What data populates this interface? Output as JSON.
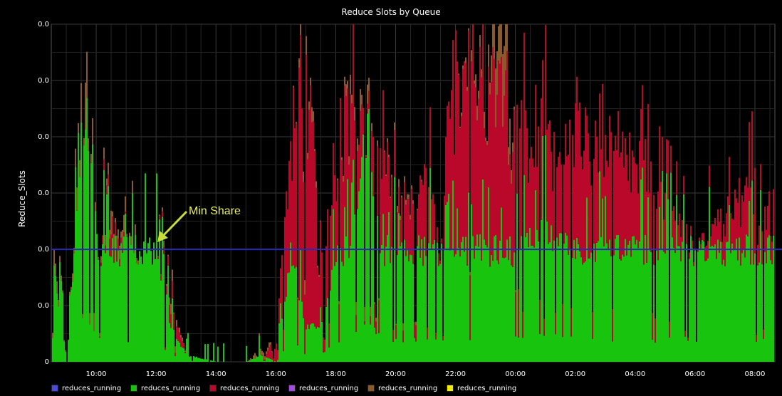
{
  "chart_data": {
    "type": "area",
    "title": "Reduce Slots by Queue",
    "ylabel": "Reduce_Slots",
    "xlabel": "",
    "y_tick_labels": [
      "0",
      "0.0",
      "0.0",
      "0.0",
      "0.0",
      "0.0",
      "0.0"
    ],
    "x_tick_labels": [
      "10:00",
      "12:00",
      "14:00",
      "16:00",
      "18:00",
      "20:00",
      "22:00",
      "00:00",
      "02:00",
      "04:00",
      "06:00",
      "08:00"
    ],
    "grid": true,
    "legend_position": "bottom",
    "series": [
      {
        "name": "reduces_running",
        "color": "#4a4ade"
      },
      {
        "name": "reduces_running",
        "color": "#19c40e"
      },
      {
        "name": "reduces_running",
        "color": "#b9082a"
      },
      {
        "name": "reduces_running",
        "color": "#a24cdb"
      },
      {
        "name": "reduces_running",
        "color": "#8b5a2b"
      },
      {
        "name": "reduces_running",
        "color": "#f2ee00"
      }
    ],
    "stack_profile": {
      "note_units": "fraction of full y-axis height",
      "x": [
        "08:30",
        "09:00",
        "09:30",
        "09:45",
        "10:00",
        "10:30",
        "11:00",
        "11:30",
        "12:00",
        "12:30",
        "13:00",
        "14:00",
        "15:00",
        "15:30",
        "16:00",
        "16:30",
        "17:00",
        "17:30",
        "18:00",
        "18:30",
        "19:00",
        "19:30",
        "20:00",
        "21:00",
        "21:30",
        "22:00",
        "23:00",
        "23:30",
        "00:00",
        "01:00",
        "02:00",
        "03:00",
        "04:00",
        "05:00",
        "06:00",
        "07:00",
        "08:00",
        "08:40"
      ],
      "green": [
        0.33,
        0.0,
        0.67,
        0.67,
        0.33,
        0.33,
        0.33,
        0.33,
        0.33,
        0.1,
        0.02,
        0.0,
        0.0,
        0.02,
        0.0,
        0.33,
        0.1,
        0.1,
        0.33,
        0.33,
        0.67,
        0.33,
        0.33,
        0.33,
        0.33,
        0.33,
        0.33,
        0.33,
        0.33,
        0.4,
        0.33,
        0.33,
        0.33,
        0.33,
        0.33,
        0.33,
        0.33,
        0.33
      ],
      "red": [
        0.0,
        0.0,
        0.0,
        0.0,
        0.0,
        0.05,
        0.0,
        0.0,
        0.0,
        0.05,
        0.0,
        0.0,
        0.0,
        0.0,
        0.05,
        0.33,
        0.7,
        0.15,
        0.3,
        0.4,
        0.0,
        0.3,
        0.1,
        0.2,
        0.0,
        0.55,
        0.5,
        0.45,
        0.35,
        0.25,
        0.35,
        0.3,
        0.25,
        0.15,
        0.0,
        0.1,
        0.2,
        0.1
      ],
      "brown": [
        0.05,
        0.0,
        0.1,
        0.1,
        0.0,
        0.05,
        0.05,
        0.0,
        0.0,
        0.03,
        0.0,
        0.0,
        0.0,
        0.02,
        0.0,
        0.0,
        0.05,
        0.0,
        0.0,
        0.05,
        0.05,
        0.0,
        0.02,
        0.0,
        0.0,
        0.0,
        0.05,
        0.2,
        0.0,
        0.0,
        0.0,
        0.0,
        0.0,
        0.0,
        0.0,
        0.0,
        0.0,
        0.0
      ]
    },
    "min_share_level": 0.333,
    "annotation": "Min Share"
  }
}
